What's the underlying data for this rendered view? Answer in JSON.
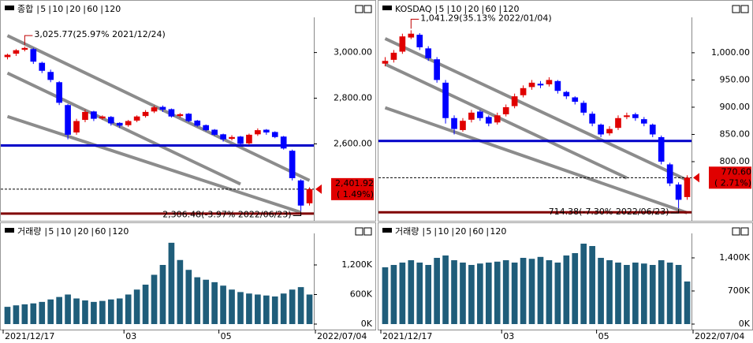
{
  "chart_data": [
    {
      "type": "candlestick",
      "title": "종합",
      "title_color": "#e00000",
      "legend": [
        {
          "name": "5",
          "color": "#e00000"
        },
        {
          "name": "10",
          "color": "#2020e0"
        },
        {
          "name": "20",
          "color": "#e09000"
        },
        {
          "name": "60",
          "color": "#108010"
        },
        {
          "name": "120",
          "color": "#a0a0a0"
        }
      ],
      "open": [
        2980,
        2995,
        3012,
        3015,
        2955,
        2915,
        2870,
        2770,
        2650,
        2705,
        2742,
        2712,
        2718,
        2692,
        2682,
        2702,
        2722,
        2742,
        2762,
        2752,
        2722,
        2732,
        2702,
        2682,
        2662,
        2642,
        2622,
        2632,
        2602,
        2642,
        2662,
        2652,
        2632,
        2570,
        2440,
        2340
      ],
      "high": [
        2995,
        3015,
        3025.77,
        3020,
        2960,
        2925,
        2875,
        2775,
        2710,
        2750,
        2745,
        2725,
        2722,
        2695,
        2705,
        2725,
        2748,
        2768,
        2768,
        2755,
        2735,
        2735,
        2705,
        2685,
        2665,
        2645,
        2638,
        2635,
        2645,
        2668,
        2665,
        2655,
        2635,
        2575,
        2445,
        2410
      ],
      "low": [
        2970,
        2985,
        3005,
        2950,
        2910,
        2870,
        2770,
        2620,
        2640,
        2695,
        2700,
        2705,
        2680,
        2670,
        2675,
        2695,
        2715,
        2735,
        2740,
        2715,
        2715,
        2695,
        2675,
        2655,
        2635,
        2610,
        2615,
        2590,
        2595,
        2635,
        2640,
        2625,
        2575,
        2440,
        2306.48,
        2330
      ],
      "close": [
        2990,
        3010,
        3020,
        2960,
        2920,
        2880,
        2780,
        2640,
        2700,
        2740,
        2710,
        2720,
        2690,
        2680,
        2700,
        2720,
        2740,
        2760,
        2750,
        2720,
        2730,
        2700,
        2680,
        2660,
        2640,
        2620,
        2630,
        2600,
        2640,
        2660,
        2650,
        2630,
        2580,
        2450,
        2330,
        2401.92
      ],
      "ylim": [
        2291,
        3154
      ],
      "yticks": [
        {
          "value": 2600,
          "label": "2,600.00"
        },
        {
          "value": 2800,
          "label": "2,800.00"
        },
        {
          "value": 3000,
          "label": "3,000.00"
        }
      ],
      "channels": [
        {
          "start": [
            0,
            3074
          ],
          "end": [
            35,
            2440
          ]
        },
        {
          "start": [
            0,
            2910
          ],
          "end": [
            27,
            2424
          ]
        },
        {
          "start": [
            0,
            2720
          ],
          "end": [
            34,
            2300
          ]
        }
      ],
      "hlines": [
        {
          "value": 2593,
          "color": "#0000c8"
        },
        {
          "value": 2295,
          "color": "#800000"
        }
      ],
      "high_label": "3,025.77(25.97% 2021/12/24)",
      "low_label": "2,306.48(-3.97% 2022/06/23)",
      "last_price": 2401.92,
      "last_price_label": "2,401.92",
      "last_change": 1.49,
      "last_change_label": "( 1.49%)"
    },
    {
      "type": "bar",
      "title": "거래량",
      "color": "#1f5d7a",
      "legend": [
        {
          "name": "5",
          "color": "#e00000"
        },
        {
          "name": "10",
          "color": "#2020e0"
        },
        {
          "name": "20",
          "color": "#e09000"
        },
        {
          "name": "60",
          "color": "#108010"
        },
        {
          "name": "120",
          "color": "#a0a0a0"
        }
      ],
      "categories": [
        "2021/12/17",
        null,
        null,
        null,
        null,
        null,
        null,
        null,
        null,
        null,
        null,
        null,
        null,
        null,
        "03",
        null,
        null,
        null,
        null,
        null,
        null,
        null,
        null,
        null,
        null,
        "05",
        null,
        null,
        null,
        null,
        null,
        null,
        null,
        null,
        null,
        "2022/07/04"
      ],
      "values": [
        350,
        380,
        400,
        420,
        450,
        500,
        550,
        600,
        520,
        480,
        450,
        470,
        500,
        520,
        600,
        700,
        800,
        1000,
        1200,
        1650,
        1300,
        1100,
        950,
        900,
        850,
        780,
        700,
        650,
        620,
        600,
        580,
        560,
        620,
        700,
        750,
        600
      ],
      "ylim": [
        0,
        1840
      ],
      "yticks": [
        {
          "value": 0,
          "label": "0K"
        },
        {
          "value": 600,
          "label": "600K"
        },
        {
          "value": 1200,
          "label": "1,200K"
        }
      ]
    },
    {
      "type": "candlestick",
      "title": "KOSDAQ",
      "title_color": "#e00000",
      "legend": [
        {
          "name": "5",
          "color": "#e00000"
        },
        {
          "name": "10",
          "color": "#2020e0"
        },
        {
          "name": "20",
          "color": "#e09000"
        },
        {
          "name": "60",
          "color": "#108010"
        },
        {
          "name": "120",
          "color": "#a0a0a0"
        }
      ],
      "open": [
        980,
        987,
        1002,
        1028,
        1033,
        1008,
        988,
        945,
        880,
        858,
        877,
        892,
        882,
        872,
        887,
        902,
        922,
        937,
        943,
        942,
        948,
        928,
        918,
        908,
        888,
        868,
        852,
        862,
        882,
        887,
        878,
        868,
        845,
        795,
        758,
        735
      ],
      "high": [
        992,
        1005,
        1035,
        1041.29,
        1036,
        1012,
        992,
        950,
        885,
        880,
        895,
        895,
        885,
        890,
        905,
        925,
        940,
        950,
        948,
        955,
        950,
        930,
        920,
        912,
        892,
        870,
        865,
        885,
        890,
        890,
        882,
        870,
        848,
        798,
        762,
        775
      ],
      "low": [
        975,
        982,
        998,
        1025,
        1005,
        985,
        945,
        870,
        850,
        855,
        872,
        875,
        865,
        868,
        883,
        898,
        918,
        932,
        935,
        938,
        925,
        915,
        905,
        885,
        865,
        845,
        848,
        858,
        878,
        875,
        865,
        845,
        795,
        755,
        714.38,
        730
      ],
      "close": [
        985,
        1000,
        1030,
        1035,
        1010,
        990,
        950,
        880,
        860,
        875,
        890,
        880,
        870,
        885,
        900,
        920,
        935,
        945,
        940,
        950,
        930,
        920,
        910,
        890,
        870,
        850,
        860,
        880,
        885,
        880,
        870,
        850,
        800,
        760,
        730,
        770.6
      ],
      "ylim": [
        703,
        1065
      ],
      "yticks": [
        {
          "value": 800,
          "label": "800.00"
        },
        {
          "value": 850,
          "label": "850.00"
        },
        {
          "value": 900,
          "label": "900.00"
        },
        {
          "value": 950,
          "label": "950.00"
        },
        {
          "value": 1000,
          "label": "1,000.00"
        }
      ],
      "channels": [
        {
          "start": [
            0,
            1026
          ],
          "end": [
            35,
            766
          ]
        },
        {
          "start": [
            0,
            979
          ],
          "end": [
            28,
            770
          ]
        },
        {
          "start": [
            0,
            899
          ],
          "end": [
            35,
            706
          ]
        }
      ],
      "hlines": [
        {
          "value": 838,
          "color": "#0000c8"
        },
        {
          "value": 707,
          "color": "#800000"
        }
      ],
      "high_label": "1,041.29(35.13% 2022/01/04)",
      "low_label": "714.38(-7.30% 2022/06/23)",
      "last_price": 770.6,
      "last_price_label": "770.60",
      "last_change": 2.71,
      "last_change_label": "( 2.71%)"
    },
    {
      "type": "bar",
      "title": "거래량",
      "color": "#1f5d7a",
      "legend": [
        {
          "name": "5",
          "color": "#e00000"
        },
        {
          "name": "10",
          "color": "#2020e0"
        },
        {
          "name": "20",
          "color": "#e09000"
        },
        {
          "name": "60",
          "color": "#108010"
        },
        {
          "name": "120",
          "color": "#a0a0a0"
        }
      ],
      "categories": [
        "2021/12/17",
        null,
        null,
        null,
        null,
        null,
        null,
        null,
        null,
        null,
        null,
        null,
        null,
        null,
        "03",
        null,
        null,
        null,
        null,
        null,
        null,
        null,
        null,
        null,
        null,
        "05",
        null,
        null,
        null,
        null,
        null,
        null,
        null,
        null,
        null,
        "2022/07/04"
      ],
      "values": [
        1200,
        1250,
        1300,
        1350,
        1300,
        1250,
        1400,
        1450,
        1350,
        1300,
        1250,
        1280,
        1300,
        1320,
        1350,
        1300,
        1400,
        1380,
        1420,
        1350,
        1300,
        1450,
        1500,
        1700,
        1650,
        1400,
        1350,
        1300,
        1250,
        1300,
        1280,
        1250,
        1350,
        1300,
        1250,
        900
      ],
      "ylim": [
        0,
        1917
      ],
      "yticks": [
        {
          "value": 0,
          "label": "0K"
        },
        {
          "value": 700,
          "label": "700K"
        },
        {
          "value": 1400,
          "label": "1,400K"
        }
      ]
    }
  ]
}
